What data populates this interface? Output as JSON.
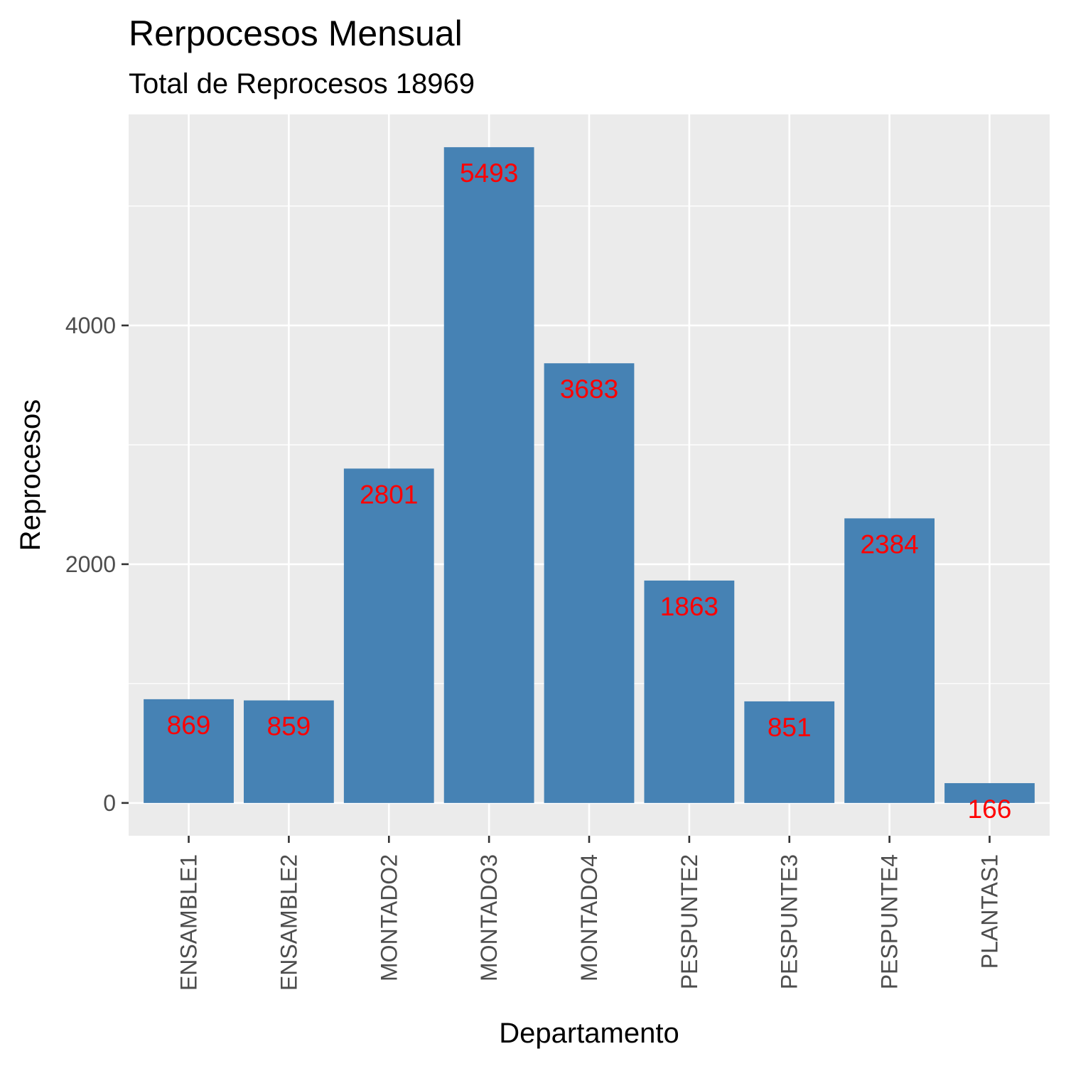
{
  "chart_data": {
    "type": "bar",
    "title": "Rerpocesos Mensual",
    "subtitle": "Total de Reprocesos 18969",
    "xlabel": "Departamento",
    "ylabel": "Reprocesos",
    "categories": [
      "ENSAMBLE1",
      "ENSAMBLE2",
      "MONTADO2",
      "MONTADO3",
      "MONTADO4",
      "PESPUNTE2",
      "PESPUNTE3",
      "PESPUNTE4",
      "PLANTAS1"
    ],
    "values": [
      869,
      859,
      2801,
      5493,
      3683,
      1863,
      851,
      2384,
      166
    ],
    "data_labels": [
      "869",
      "859",
      "2801",
      "5493",
      "3683",
      "1863",
      "851",
      "2384",
      "166"
    ],
    "y_ticks": [
      0,
      2000,
      4000
    ],
    "y_tick_labels": [
      "0",
      "2000",
      "4000"
    ],
    "ylim": [
      -274.65,
      5767.65
    ],
    "grid": true,
    "x_tick_label_rotation": "vertical",
    "colors": {
      "bar": "#4682B4",
      "data_label": "#FF0000",
      "panel_background": "#EBEBEB",
      "grid": "#FFFFFF",
      "tick_text": "#4D4D4D",
      "tick_mark": "#333333"
    }
  }
}
